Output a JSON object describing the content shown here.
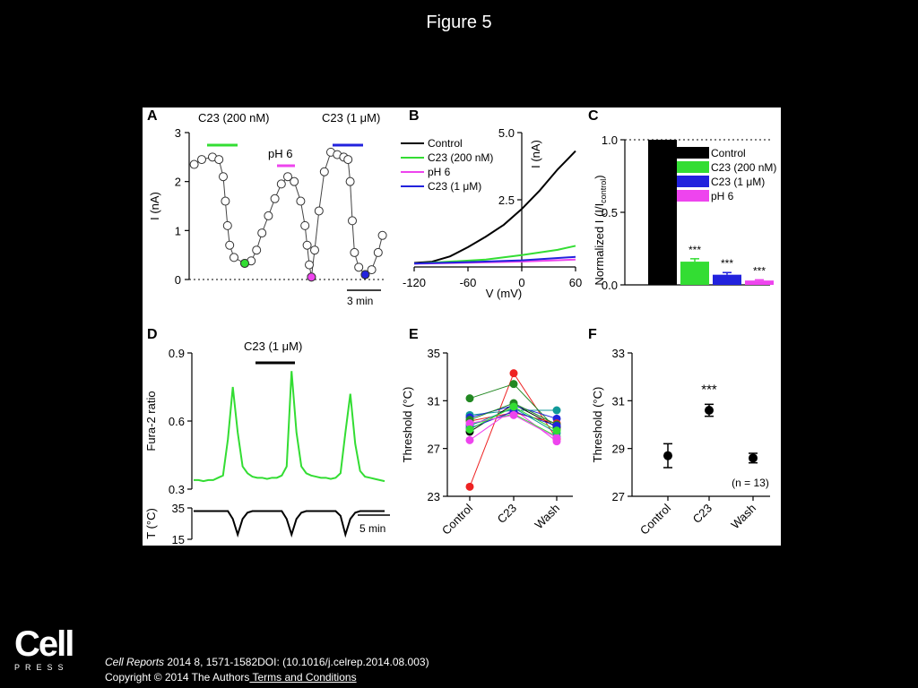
{
  "page": {
    "title": "Figure 5",
    "citation": {
      "journal": "Cell Reports",
      "ref": " 2014 8, 1571-1582DOI: (10.1016/j.celrep.2014.08.003)",
      "copyright": "Copyright © 2014 The Authors",
      "terms_link": " Terms and Conditions"
    },
    "logo": {
      "main": "Cell",
      "sub": "PRESS"
    }
  },
  "colors": {
    "green": "#33dd33",
    "magenta": "#ee44ee",
    "blue": "#2222dd",
    "black": "#000000",
    "red": "#ee2222",
    "teal": "#119999",
    "darkgreen": "#228822"
  },
  "chart_data": [
    {
      "panel": "A",
      "type": "scatter",
      "ylabel": "I (nA)",
      "ylim": [
        0,
        3
      ],
      "yticks": [
        "0",
        "1",
        "2",
        "3"
      ],
      "scale_bar": "3 min",
      "annotations": [
        "C23 (200 nM)",
        "pH 6",
        "C23 (1 μM)"
      ],
      "x": [
        0.3,
        1,
        2,
        2.6,
        3,
        3.2,
        3.4,
        3.6,
        4,
        5,
        5.6,
        6.1,
        6.6,
        7.2,
        7.8,
        8.4,
        9,
        9.6,
        10.2,
        10.6,
        10.8,
        11,
        11.2,
        11.5,
        11.9,
        12.4,
        13,
        13.6,
        14.2,
        14.6,
        14.8,
        15,
        15.2,
        15.6,
        16.2,
        16.8,
        17.4,
        17.8
      ],
      "y": [
        2.35,
        2.45,
        2.5,
        2.45,
        2.1,
        1.6,
        1.1,
        0.7,
        0.45,
        0.33,
        0.38,
        0.6,
        0.95,
        1.3,
        1.65,
        1.95,
        2.1,
        2.0,
        1.6,
        1.1,
        0.7,
        0.3,
        0.05,
        0.6,
        1.4,
        2.2,
        2.6,
        2.55,
        2.5,
        2.45,
        2.0,
        1.2,
        0.55,
        0.25,
        0.1,
        0.2,
        0.55,
        0.9
      ],
      "colored": [
        {
          "idx": 9,
          "color": "#33dd33"
        },
        {
          "idx": 22,
          "color": "#ee44ee"
        },
        {
          "idx": 34,
          "color": "#2222dd"
        }
      ]
    },
    {
      "panel": "B",
      "type": "line",
      "xlabel": "V (mV)",
      "ylabel": "I (nA)",
      "xlim": [
        -120,
        60
      ],
      "ylim": [
        0,
        5
      ],
      "xticks": [
        "-120",
        "-60",
        "0",
        "60"
      ],
      "yticks": [
        "2.5",
        "5.0"
      ],
      "series": [
        {
          "name": "Control",
          "color": "#000000",
          "x": [
            -120,
            -100,
            -80,
            -60,
            -40,
            -20,
            0,
            20,
            40,
            60
          ],
          "y": [
            0.05,
            0.1,
            0.3,
            0.65,
            1.05,
            1.5,
            2.1,
            2.8,
            3.6,
            4.3
          ]
        },
        {
          "name": "C23 (200 nM)",
          "color": "#33dd33",
          "x": [
            -120,
            -80,
            -40,
            0,
            40,
            60
          ],
          "y": [
            0.02,
            0.1,
            0.18,
            0.35,
            0.55,
            0.7
          ]
        },
        {
          "name": " pH 6",
          "color": "#ee44ee",
          "x": [
            -120,
            -60,
            0,
            60
          ],
          "y": [
            0.02,
            0.06,
            0.1,
            0.18
          ]
        },
        {
          "name": "C23 (1 μM)",
          "color": "#2222dd",
          "x": [
            -120,
            -60,
            0,
            60
          ],
          "y": [
            0.03,
            0.08,
            0.15,
            0.28
          ]
        }
      ]
    },
    {
      "panel": "C",
      "type": "bar",
      "ylabel": "Normalized I (I/I",
      "ylabel_sub": "control",
      "ylabel_end": ")",
      "ylim": [
        0,
        1
      ],
      "yticks": [
        "0.0",
        "0.5",
        "1.0"
      ],
      "categories": [
        "Control",
        "C23 (200 nM)",
        "C23 (1 μM)",
        "pH 6"
      ],
      "values": [
        1.0,
        0.16,
        0.07,
        0.03
      ],
      "errors": [
        0,
        0.02,
        0.015,
        0.005
      ],
      "colors": [
        "#000000",
        "#33dd33",
        "#2222dd",
        "#ee44ee"
      ],
      "sig": [
        "",
        "***",
        "***",
        "***"
      ]
    },
    {
      "panel": "D",
      "type": "line",
      "ylabel": "Fura-2 ratio",
      "ylim": [
        0.3,
        0.9
      ],
      "yticks": [
        "0.3",
        "0.6",
        "0.9"
      ],
      "annotation": "C23 (1 μM)",
      "ratio_y": [
        0.34,
        0.34,
        0.335,
        0.34,
        0.34,
        0.35,
        0.36,
        0.52,
        0.75,
        0.55,
        0.4,
        0.37,
        0.355,
        0.35,
        0.35,
        0.345,
        0.35,
        0.35,
        0.36,
        0.4,
        0.82,
        0.55,
        0.4,
        0.37,
        0.36,
        0.355,
        0.35,
        0.35,
        0.345,
        0.35,
        0.37,
        0.55,
        0.72,
        0.5,
        0.38,
        0.355,
        0.35,
        0.345,
        0.34,
        0.335
      ],
      "temp_label": "T (°C)",
      "temp_ticks": [
        "15",
        "35"
      ],
      "scale_bar": "5 min",
      "temp_y": [
        33,
        33,
        33,
        33,
        33,
        33,
        33,
        33,
        28,
        18,
        28,
        32,
        33,
        33,
        33,
        33,
        33,
        33,
        33,
        28,
        18,
        28,
        32,
        33,
        33,
        33,
        33,
        33,
        33,
        33,
        30,
        18,
        28,
        32,
        33,
        33,
        33,
        33,
        33,
        33
      ]
    },
    {
      "panel": "E",
      "type": "line",
      "ylabel": "Threshold (°C)",
      "ylim": [
        23,
        35
      ],
      "yticks": [
        "23",
        "27",
        "31",
        "35"
      ],
      "categories": [
        "Control",
        "C23",
        "Wash"
      ],
      "series": [
        {
          "color": "#ee2222",
          "values": [
            23.8,
            33.3,
            27.8
          ]
        },
        {
          "color": "#228822",
          "values": [
            31.2,
            32.4,
            28.6
          ]
        },
        {
          "color": "#119999",
          "values": [
            29.8,
            30.2,
            30.2
          ]
        },
        {
          "color": "#000000",
          "values": [
            28.4,
            30.7,
            28.8
          ]
        },
        {
          "color": "#2222dd",
          "values": [
            29.6,
            30.6,
            29.5
          ]
        },
        {
          "color": "#ee44ee",
          "values": [
            27.7,
            30.3,
            27.6
          ]
        },
        {
          "color": "#33dd33",
          "values": [
            29.0,
            29.9,
            28.0
          ]
        },
        {
          "color": "#ee2222",
          "values": [
            29.3,
            30.0,
            29.1
          ]
        },
        {
          "color": "#119999",
          "values": [
            28.9,
            30.4,
            28.3
          ]
        },
        {
          "color": "#228822",
          "values": [
            29.4,
            30.8,
            29.0
          ]
        },
        {
          "color": "#2222dd",
          "values": [
            28.7,
            30.1,
            28.9
          ]
        },
        {
          "color": "#ee44ee",
          "values": [
            29.1,
            29.8,
            27.9
          ]
        },
        {
          "color": "#33dd33",
          "values": [
            28.6,
            30.5,
            28.5
          ]
        }
      ]
    },
    {
      "panel": "F",
      "type": "scatter",
      "ylabel": "Threshold (°C)",
      "ylim": [
        27,
        33
      ],
      "yticks": [
        "27",
        "29",
        "31",
        "33"
      ],
      "categories": [
        "Control",
        "C23",
        "Wash"
      ],
      "values": [
        28.7,
        30.6,
        28.6
      ],
      "errors": [
        0.5,
        0.25,
        0.2
      ],
      "sig": [
        "",
        "***",
        ""
      ],
      "note": "(n = 13)"
    }
  ]
}
